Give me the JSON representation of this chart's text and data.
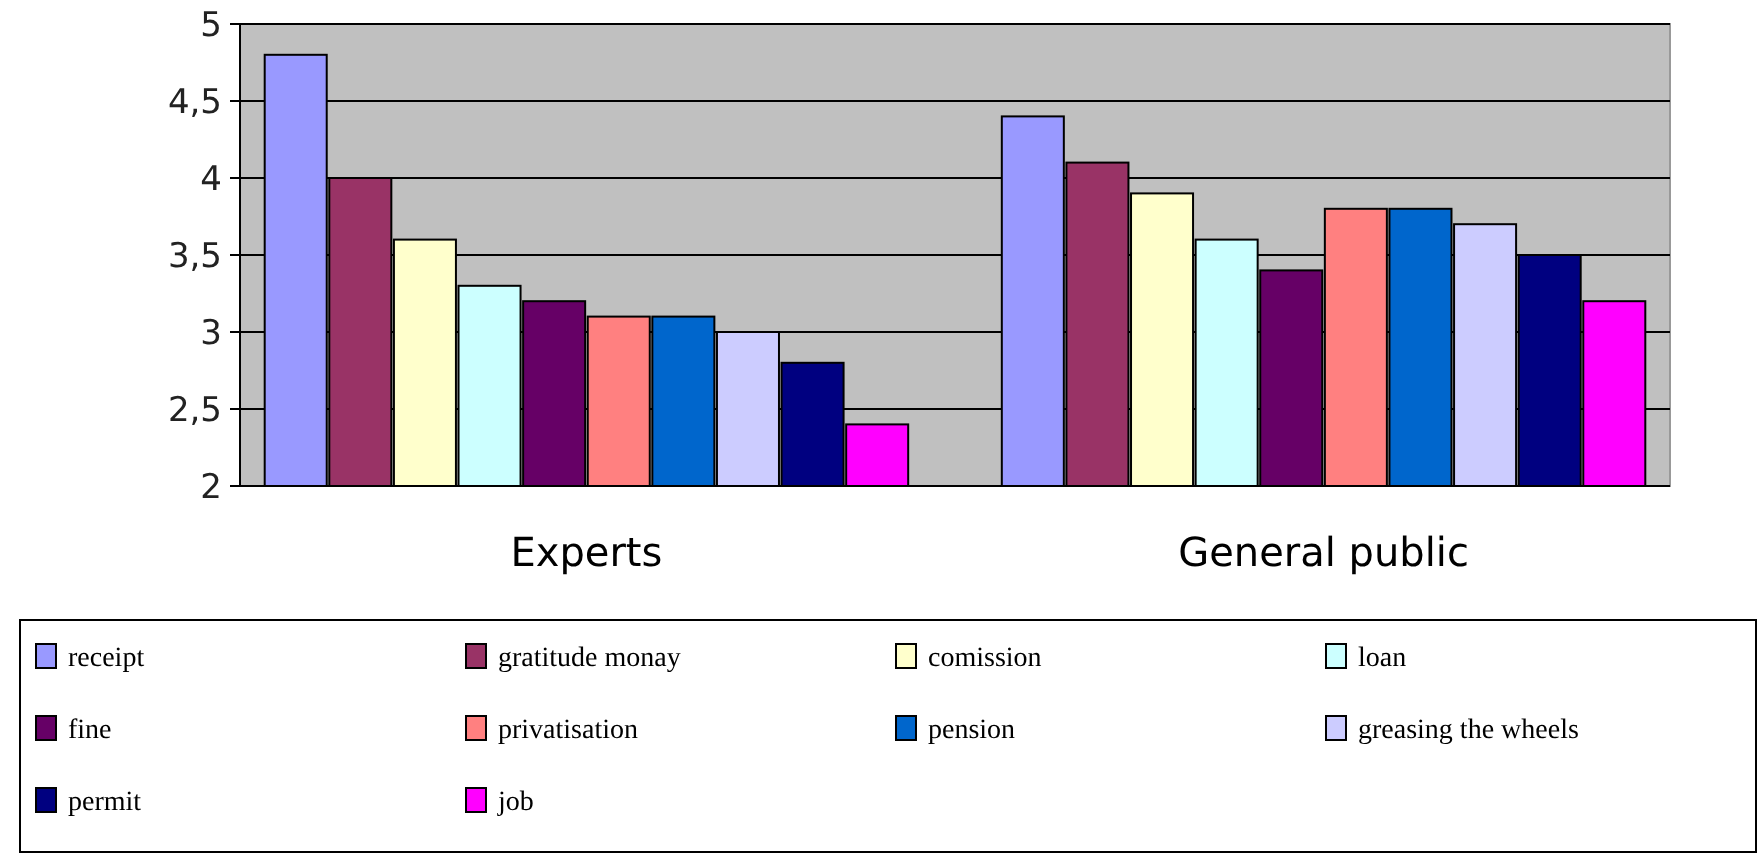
{
  "chart_data": {
    "type": "bar",
    "categories": [
      "Experts",
      "General public"
    ],
    "series": [
      {
        "name": "receipt",
        "color": "#9999ff",
        "values": [
          4.8,
          4.4
        ]
      },
      {
        "name": "gratitude monay",
        "color": "#993366",
        "values": [
          4.0,
          4.1
        ]
      },
      {
        "name": "comission",
        "color": "#ffffcc",
        "values": [
          3.6,
          3.9
        ]
      },
      {
        "name": "loan",
        "color": "#ccffff",
        "values": [
          3.3,
          3.6
        ]
      },
      {
        "name": "fine",
        "color": "#660066",
        "values": [
          3.2,
          3.4
        ]
      },
      {
        "name": "privatisation",
        "color": "#ff8080",
        "values": [
          3.1,
          3.8
        ]
      },
      {
        "name": "pension",
        "color": "#0066cc",
        "values": [
          3.1,
          3.8
        ]
      },
      {
        "name": "greasing the wheels",
        "color": "#ccccff",
        "values": [
          3.0,
          3.7
        ]
      },
      {
        "name": "permit",
        "color": "#000080",
        "values": [
          2.8,
          3.5
        ]
      },
      {
        "name": "job",
        "color": "#ff00ff",
        "values": [
          2.4,
          3.2
        ]
      }
    ],
    "ylim": [
      2,
      5
    ],
    "yticks": [
      2,
      {
        "value": 2.5,
        "label": "2,5"
      },
      3,
      {
        "value": 3.5,
        "label": "3,5"
      },
      4,
      {
        "value": 4.5,
        "label": "4,5"
      },
      5
    ],
    "grid": "y",
    "legend": "bottom"
  }
}
